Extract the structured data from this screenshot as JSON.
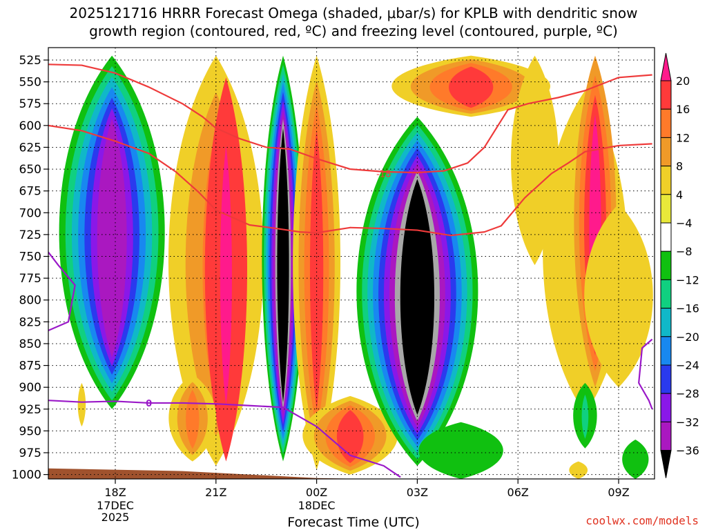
{
  "title_line1": "2025121716 HRRR Forecast Omega (shaded, μbar/s) for KPLB with dendritic snow",
  "title_line2": "growth region (contoured, red, ºC) and freezing level (contoured, purple, ºC)",
  "credit": "coolwx.com/models",
  "chart_data": {
    "type": "heatmap",
    "title": "2025121716 HRRR Forecast Omega (shaded, μbar/s) for KPLB with dendritic snow growth region (contoured, red, ºC) and freezing level (contoured, purple, ºC)",
    "xlabel": "Forecast Time (UTC)",
    "ylabel": "",
    "x_ticks": [
      {
        "label": "18Z",
        "sub": [
          "17DEC",
          "2025"
        ],
        "hour": 18
      },
      {
        "label": "21Z",
        "sub": [],
        "hour": 21
      },
      {
        "label": "00Z",
        "sub": [
          "18DEC"
        ],
        "hour": 24
      },
      {
        "label": "03Z",
        "sub": [],
        "hour": 27
      },
      {
        "label": "06Z",
        "sub": [],
        "hour": 30
      },
      {
        "label": "09Z",
        "sub": [],
        "hour": 33
      }
    ],
    "xlim": [
      16,
      34
    ],
    "ylim": [
      1010,
      515
    ],
    "y_ticks": [
      525,
      550,
      575,
      600,
      625,
      650,
      675,
      700,
      725,
      750,
      775,
      800,
      825,
      850,
      875,
      900,
      925,
      950,
      975,
      1000
    ],
    "grid": true,
    "colorbar": {
      "levels": [
        20,
        16,
        12,
        8,
        4,
        -4,
        -8,
        -12,
        -16,
        -20,
        -24,
        -28,
        -32,
        -36
      ],
      "colors": [
        "#ff1a8c",
        "#ff3a3a",
        "#ff7a2a",
        "#f09a28",
        "#f0cf28",
        "#e8e83a",
        "#ffffff",
        "#10c010",
        "#10d080",
        "#10b8c8",
        "#1888f0",
        "#2a3aee",
        "#8a18e8",
        "#aa18c0",
        "#a8a8a8",
        "#000000"
      ]
    },
    "contour_labels": {
      "dgz": "-18",
      "freezing": "0"
    },
    "dgz_lines": [
      {
        "points": [
          [
            16.0,
            530
          ],
          [
            17.0,
            531
          ],
          [
            18.0,
            540
          ],
          [
            19.0,
            556
          ],
          [
            20.0,
            575
          ],
          [
            20.6,
            590
          ],
          [
            21.0,
            603
          ],
          [
            21.7,
            615
          ],
          [
            22.5,
            625
          ],
          [
            23.2,
            627
          ],
          [
            24.0,
            638
          ],
          [
            25.0,
            650
          ],
          [
            26.0,
            653
          ],
          [
            27.0,
            654
          ],
          [
            27.8,
            652
          ],
          [
            28.5,
            643
          ],
          [
            29.0,
            625
          ],
          [
            29.7,
            582
          ],
          [
            30.3,
            575
          ],
          [
            31.2,
            568
          ],
          [
            32.0,
            560
          ],
          [
            33.0,
            545
          ],
          [
            34.0,
            542
          ]
        ]
      },
      {
        "points": [
          [
            16.0,
            600
          ],
          [
            17.0,
            606
          ],
          [
            18.0,
            618
          ],
          [
            19.0,
            632
          ],
          [
            19.8,
            653
          ],
          [
            20.5,
            677
          ],
          [
            21.0,
            697
          ],
          [
            22.0,
            714
          ],
          [
            22.8,
            718
          ],
          [
            23.5,
            722
          ],
          [
            24.0,
            723
          ],
          [
            25.0,
            717
          ],
          [
            26.0,
            718
          ],
          [
            27.0,
            720
          ],
          [
            28.0,
            726
          ],
          [
            29.0,
            722
          ],
          [
            29.5,
            715
          ],
          [
            30.2,
            683
          ],
          [
            31.0,
            655
          ],
          [
            31.5,
            643
          ],
          [
            32.0,
            630
          ],
          [
            33.0,
            623
          ],
          [
            34.0,
            621
          ]
        ]
      }
    ],
    "freezing_lines": [
      {
        "points": [
          [
            16.0,
            745
          ],
          [
            16.3,
            760
          ],
          [
            16.8,
            783
          ],
          [
            16.6,
            825
          ],
          [
            16.0,
            835
          ]
        ]
      },
      {
        "points": [
          [
            16.0,
            915
          ],
          [
            17.0,
            917
          ],
          [
            18.0,
            916
          ],
          [
            19.0,
            918
          ],
          [
            20.0,
            918
          ],
          [
            21.0,
            919
          ],
          [
            22.0,
            921
          ],
          [
            23.0,
            923
          ],
          [
            24.0,
            945
          ],
          [
            25.0,
            978
          ],
          [
            26.0,
            990
          ],
          [
            26.5,
            1003
          ]
        ]
      },
      {
        "points": [
          [
            34.0,
            845
          ],
          [
            33.7,
            855
          ],
          [
            33.6,
            895
          ],
          [
            33.9,
            915
          ],
          [
            34.0,
            925
          ]
        ]
      }
    ],
    "regions": [
      {
        "cx": 17.9,
        "top": 520,
        "bot": 925,
        "hw": 2.0,
        "levels": [
          -4,
          -8,
          -12,
          -16,
          -20,
          -24,
          -28
        ]
      },
      {
        "cx": 17.0,
        "top": 895,
        "bot": 945,
        "hw": 0.15,
        "levels": [
          4
        ]
      },
      {
        "cx": 21.0,
        "top": 520,
        "bot": 990,
        "hw": 1.8,
        "levels": [
          4,
          8,
          12
        ]
      },
      {
        "cx": 21.3,
        "top": 545,
        "bot": 985,
        "hw": 0.8,
        "levels": [
          16,
          20
        ]
      },
      {
        "cx": 20.3,
        "top": 885,
        "bot": 985,
        "hw": 0.9,
        "levels": [
          4,
          8,
          12
        ]
      },
      {
        "cx": 23.0,
        "top": 520,
        "bot": 985,
        "hw": 0.8,
        "levels": [
          -4,
          -8,
          -12,
          -16,
          -20,
          -24,
          -28,
          -32,
          -36
        ]
      },
      {
        "cx": 24.0,
        "top": 520,
        "bot": 995,
        "hw": 0.9,
        "levels": [
          4,
          8,
          12,
          16
        ]
      },
      {
        "cx": 25.0,
        "top": 910,
        "bot": 1000,
        "hw": 1.8,
        "levels": [
          4,
          8,
          12,
          16
        ]
      },
      {
        "cx": 27.0,
        "top": 590,
        "bot": 990,
        "hw": 2.3,
        "levels": [
          -4,
          -8,
          -12,
          -16,
          -20,
          -24,
          -28,
          -32,
          -36
        ]
      },
      {
        "cx": 28.6,
        "top": 520,
        "bot": 590,
        "hw": 3.0,
        "levels": [
          4,
          8,
          12,
          16
        ]
      },
      {
        "cx": 28.3,
        "top": 940,
        "bot": 1005,
        "hw": 1.6,
        "levels": [
          -4
        ]
      },
      {
        "cx": 30.5,
        "top": 520,
        "bot": 760,
        "hw": 0.9,
        "levels": [
          4
        ]
      },
      {
        "cx": 32.0,
        "top": 560,
        "bot": 930,
        "hw": 1.6,
        "levels": [
          4
        ]
      },
      {
        "cx": 32.3,
        "top": 520,
        "bot": 900,
        "hw": 0.8,
        "levels": [
          8,
          12,
          16,
          20
        ]
      },
      {
        "cx": 33.0,
        "top": 690,
        "bot": 900,
        "hw": 1.3,
        "levels": [
          4
        ]
      },
      {
        "cx": 32.0,
        "top": 895,
        "bot": 970,
        "hw": 0.45,
        "levels": [
          -4,
          -8
        ]
      },
      {
        "cx": 31.8,
        "top": 985,
        "bot": 1005,
        "hw": 0.35,
        "levels": [
          4
        ]
      },
      {
        "cx": 33.5,
        "top": 960,
        "bot": 1005,
        "hw": 0.5,
        "levels": [
          -4
        ]
      }
    ]
  }
}
